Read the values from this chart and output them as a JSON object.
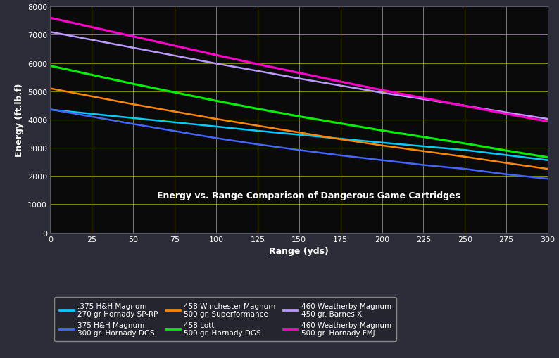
{
  "fig_bg_color": "#2d2d3a",
  "plot_bg_color": "#0a0a0a",
  "grid_color": "#cccc00",
  "text_color": "#ffffff",
  "ylabel": "Energy (ft.lb.f)",
  "xlabel": "Range (yds)",
  "chart_title": "Energy vs. Range Comparison of Dangerous Game Cartridges",
  "xlim": [
    0,
    300
  ],
  "ylim": [
    0,
    8000
  ],
  "xticks": [
    0,
    25,
    50,
    75,
    100,
    125,
    150,
    175,
    200,
    225,
    250,
    275,
    300
  ],
  "yticks": [
    0,
    1000,
    2000,
    3000,
    4000,
    5000,
    6000,
    7000,
    8000
  ],
  "series": [
    {
      "label1": ".375 H&H Magnum",
      "label2": "270 gr Hornady SP-RP",
      "color": "#00ccff",
      "linewidth": 1.8,
      "x": [
        0,
        25,
        50,
        75,
        100,
        125,
        150,
        175,
        200,
        225,
        250,
        275,
        300
      ],
      "y": [
        4350,
        4200,
        4050,
        3900,
        3750,
        3600,
        3460,
        3320,
        3180,
        3050,
        2920,
        2740,
        2560
      ]
    },
    {
      "label1": "375 H&H Magnum",
      "label2": "300 gr. Hornady DGS",
      "color": "#4466ff",
      "linewidth": 1.8,
      "x": [
        0,
        25,
        50,
        75,
        100,
        125,
        150,
        175,
        200,
        225,
        250,
        275,
        300
      ],
      "y": [
        4360,
        4100,
        3840,
        3590,
        3340,
        3120,
        2920,
        2730,
        2560,
        2390,
        2250,
        2060,
        1900
      ]
    },
    {
      "label1": "458 Winchester Magnum",
      "label2": "500 gr. Superformance",
      "color": "#ff8800",
      "linewidth": 1.8,
      "x": [
        0,
        25,
        50,
        75,
        100,
        125,
        150,
        175,
        200,
        225,
        250,
        275,
        300
      ],
      "y": [
        5100,
        4820,
        4540,
        4280,
        4020,
        3780,
        3540,
        3300,
        3080,
        2880,
        2680,
        2460,
        2250
      ]
    },
    {
      "label1": "458 Lott",
      "label2": "500 gr. Hornady DGS",
      "color": "#00ee00",
      "linewidth": 2.2,
      "x": [
        0,
        25,
        50,
        75,
        100,
        125,
        150,
        175,
        200,
        225,
        250,
        275,
        300
      ],
      "y": [
        5900,
        5580,
        5260,
        4960,
        4660,
        4380,
        4110,
        3860,
        3610,
        3380,
        3150,
        2900,
        2660
      ]
    },
    {
      "label1": "460 Weatherby Magnum",
      "label2": "450 gr. Barnes X",
      "color": "#bb99ff",
      "linewidth": 1.8,
      "x": [
        0,
        25,
        50,
        75,
        100,
        125,
        150,
        175,
        200,
        225,
        250,
        275,
        300
      ],
      "y": [
        7100,
        6820,
        6540,
        6260,
        5980,
        5720,
        5450,
        5200,
        4950,
        4720,
        4490,
        4250,
        4020
      ]
    },
    {
      "label1": "460 Weatherby Magnum",
      "label2": "500 gr. Hornady FMJ",
      "color": "#ff00cc",
      "linewidth": 2.2,
      "x": [
        0,
        25,
        50,
        75,
        100,
        125,
        150,
        175,
        200,
        225,
        250,
        275,
        300
      ],
      "y": [
        7600,
        7270,
        6940,
        6610,
        6280,
        5960,
        5650,
        5340,
        5040,
        4760,
        4480,
        4200,
        3930
      ]
    }
  ],
  "legend_order": [
    0,
    1,
    2,
    3,
    4,
    5
  ],
  "legend_bg": "#252530",
  "legend_border": "#888888",
  "legend_fontsize": 7.5
}
